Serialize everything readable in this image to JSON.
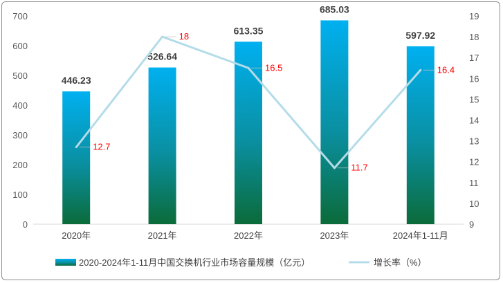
{
  "chart_data": {
    "type": "bar",
    "categories": [
      "2020年",
      "2021年",
      "2022年",
      "2023年",
      "2024年1-11月"
    ],
    "series": [
      {
        "name": "2020-2024年1-11月中国交换机行业市场容量规模（亿元）",
        "type": "bar",
        "axis": "left",
        "values": [
          446.23,
          526.64,
          613.35,
          685.03,
          597.92
        ]
      },
      {
        "name": "增长率（%）",
        "type": "line",
        "axis": "right",
        "values": [
          12.7,
          18,
          16.5,
          11.7,
          16.4
        ]
      }
    ],
    "y_left": {
      "ylim": [
        0,
        700
      ],
      "ticks": [
        0,
        100,
        200,
        300,
        400,
        500,
        600,
        700
      ]
    },
    "y_right": {
      "ylim": [
        9,
        19
      ],
      "ticks": [
        9,
        10,
        11,
        12,
        13,
        14,
        15,
        16,
        17,
        18,
        19
      ]
    },
    "grid": false,
    "legend_position": "bottom",
    "colors": {
      "bar_top": "#00b0f0",
      "bar_bottom": "#0b6b3a",
      "line": "#b4dce8",
      "line_labels": "#ff0000",
      "bar_labels": "#404040"
    }
  }
}
